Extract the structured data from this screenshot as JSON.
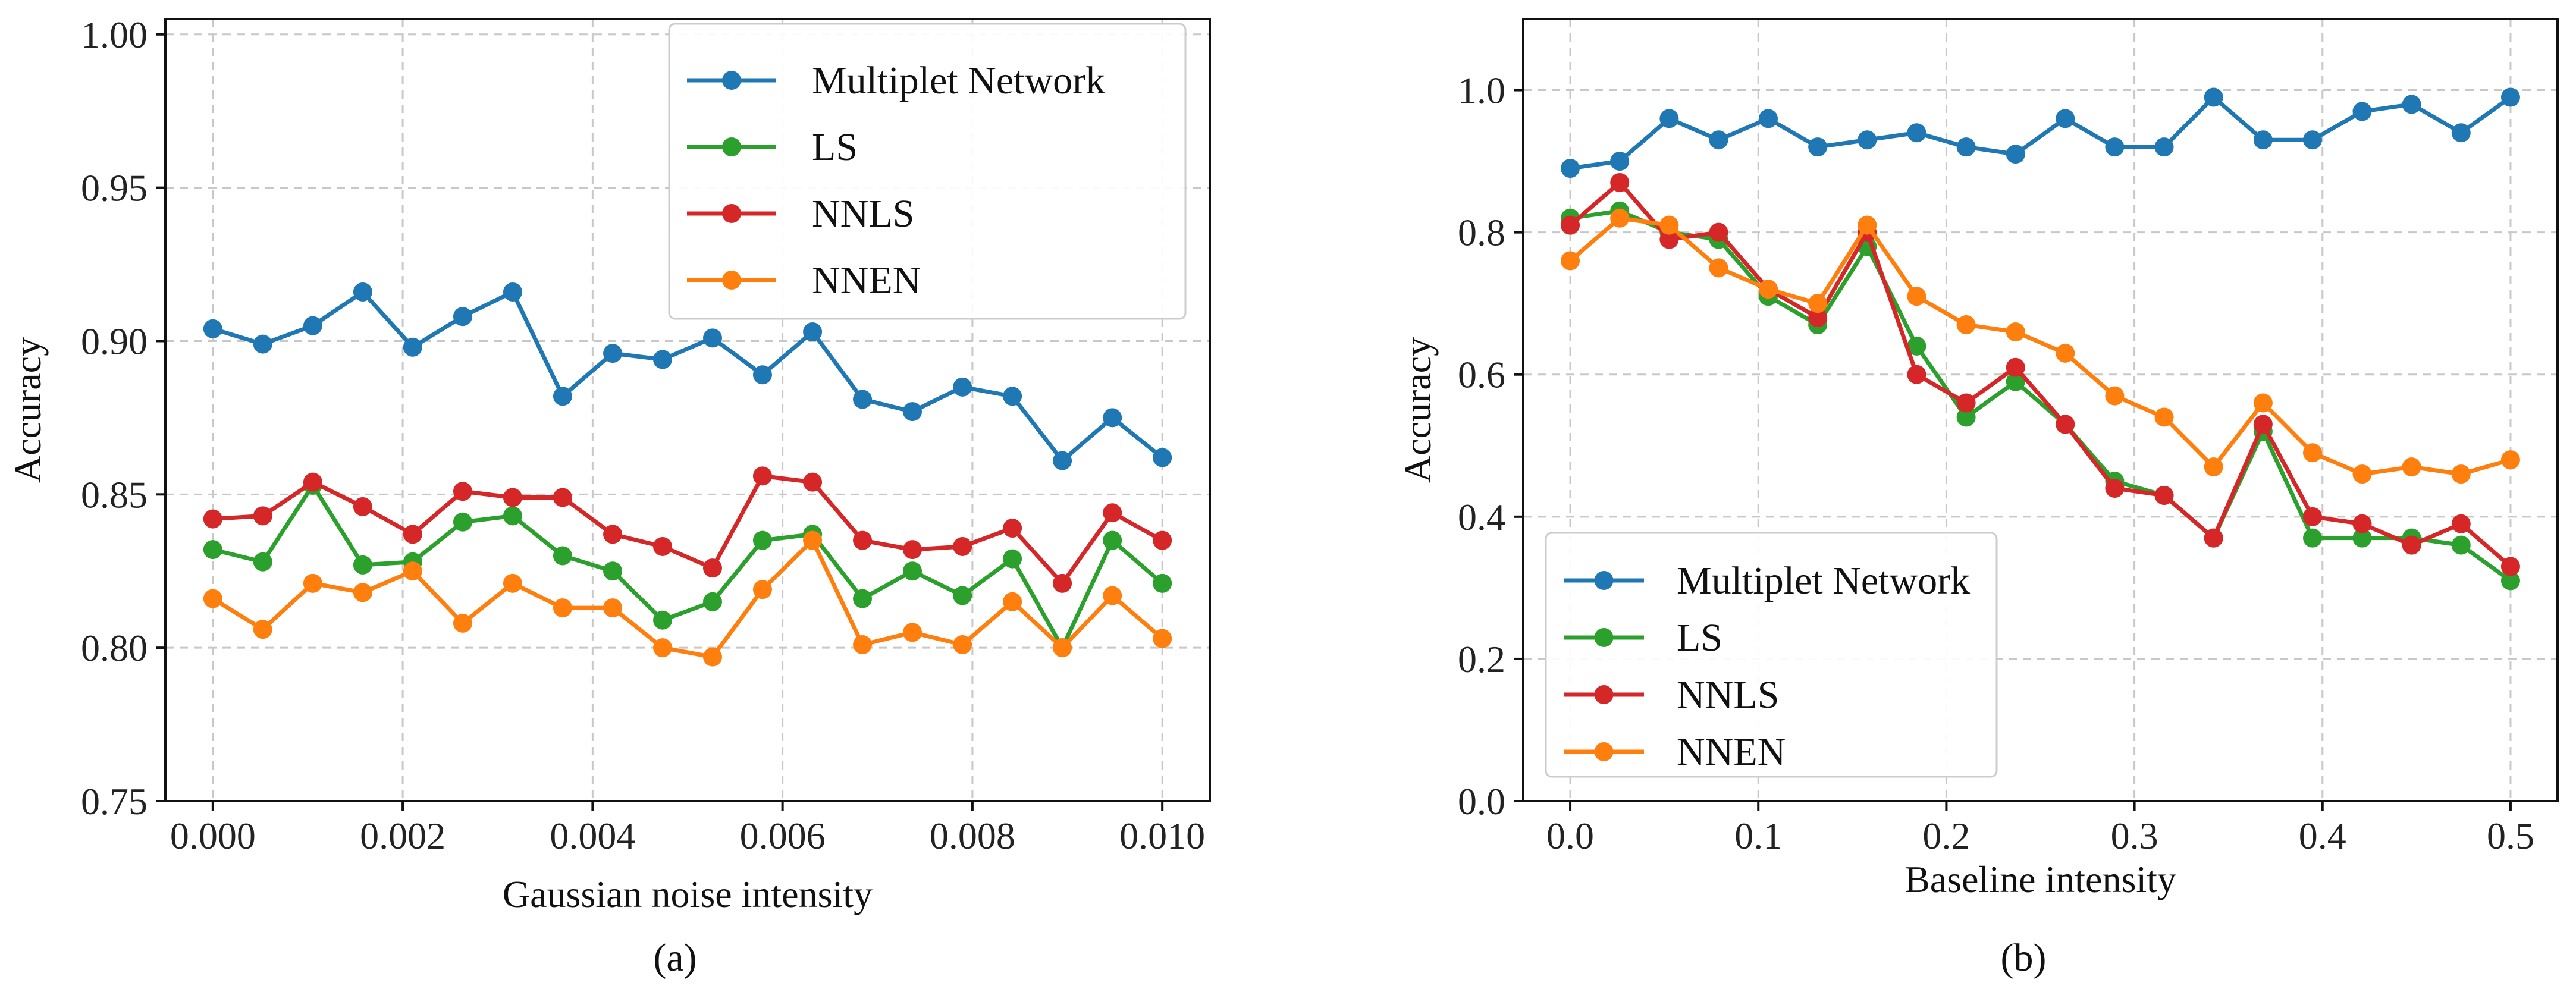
{
  "colors": {
    "multiplet": "#1f77b4",
    "ls": "#2ca02c",
    "nnls": "#d62728",
    "nnen": "#ff7f0e"
  },
  "chart_data": [
    {
      "id": "a",
      "type": "line",
      "caption": "(a)",
      "xlabel": "Gaussian noise intensity",
      "ylabel": "Accuracy",
      "xlim": [
        -0.0005,
        0.0105
      ],
      "ylim": [
        0.75,
        1.005
      ],
      "grid": true,
      "legend_position": "top-right",
      "xticks": [
        0.0,
        0.002,
        0.004,
        0.006,
        0.008,
        0.01
      ],
      "xtick_labels": [
        "0.000",
        "0.002",
        "0.004",
        "0.006",
        "0.008",
        "0.010"
      ],
      "yticks": [
        0.75,
        0.8,
        0.85,
        0.9,
        0.95,
        1.0
      ],
      "ytick_labels": [
        "0.75",
        "0.80",
        "0.85",
        "0.90",
        "0.95",
        "1.00"
      ],
      "x": [
        0.0,
        0.000526,
        0.001053,
        0.001579,
        0.002105,
        0.002632,
        0.003158,
        0.003684,
        0.004211,
        0.004737,
        0.005263,
        0.005789,
        0.006316,
        0.006842,
        0.007368,
        0.007895,
        0.008421,
        0.008947,
        0.009474,
        0.01
      ],
      "series": [
        {
          "name": "Multiplet Network",
          "color_key": "multiplet",
          "values": [
            0.904,
            0.899,
            0.905,
            0.916,
            0.898,
            0.908,
            0.916,
            0.882,
            0.896,
            0.894,
            0.901,
            0.889,
            0.903,
            0.881,
            0.877,
            0.885,
            0.882,
            0.861,
            0.875,
            0.862
          ]
        },
        {
          "name": "LS",
          "color_key": "ls",
          "values": [
            0.832,
            0.828,
            0.853,
            0.827,
            0.828,
            0.841,
            0.843,
            0.83,
            0.825,
            0.809,
            0.815,
            0.835,
            0.837,
            0.816,
            0.825,
            0.817,
            0.829,
            0.8,
            0.835,
            0.821
          ]
        },
        {
          "name": "NNLS",
          "color_key": "nnls",
          "values": [
            0.842,
            0.843,
            0.854,
            0.846,
            0.837,
            0.851,
            0.849,
            0.849,
            0.837,
            0.833,
            0.826,
            0.856,
            0.854,
            0.835,
            0.832,
            0.833,
            0.839,
            0.821,
            0.844,
            0.835
          ]
        },
        {
          "name": "NNEN",
          "color_key": "nnen",
          "values": [
            0.816,
            0.806,
            0.821,
            0.818,
            0.825,
            0.808,
            0.821,
            0.813,
            0.813,
            0.8,
            0.797,
            0.819,
            0.835,
            0.801,
            0.805,
            0.801,
            0.815,
            0.8,
            0.817,
            0.803
          ]
        }
      ]
    },
    {
      "id": "b",
      "type": "line",
      "caption": "(b)",
      "xlabel": "Baseline intensity",
      "ylabel": "Accuracy",
      "xlim": [
        -0.025,
        0.525
      ],
      "ylim": [
        0.0,
        1.1
      ],
      "grid": true,
      "legend_position": "lower-left",
      "xticks": [
        0.0,
        0.1,
        0.2,
        0.3,
        0.4,
        0.5
      ],
      "xtick_labels": [
        "0.0",
        "0.1",
        "0.2",
        "0.3",
        "0.4",
        "0.5"
      ],
      "yticks": [
        0.0,
        0.2,
        0.4,
        0.6,
        0.8,
        1.0
      ],
      "ytick_labels": [
        "0.0",
        "0.2",
        "0.4",
        "0.6",
        "0.8",
        "1.0"
      ],
      "x": [
        0.0,
        0.0263,
        0.0526,
        0.0789,
        0.1053,
        0.1316,
        0.1579,
        0.1842,
        0.2105,
        0.2368,
        0.2632,
        0.2895,
        0.3158,
        0.3421,
        0.3684,
        0.3947,
        0.4211,
        0.4474,
        0.4737,
        0.5
      ],
      "series": [
        {
          "name": "Multiplet Network",
          "color_key": "multiplet",
          "values": [
            0.89,
            0.9,
            0.96,
            0.93,
            0.96,
            0.92,
            0.93,
            0.94,
            0.92,
            0.91,
            0.96,
            0.92,
            0.92,
            0.99,
            0.93,
            0.93,
            0.97,
            0.98,
            0.94,
            0.99
          ]
        },
        {
          "name": "LS",
          "color_key": "ls",
          "values": [
            0.82,
            0.83,
            0.8,
            0.79,
            0.71,
            0.67,
            0.78,
            0.64,
            0.54,
            0.59,
            0.53,
            0.45,
            0.43,
            0.37,
            0.52,
            0.37,
            0.37,
            0.37,
            0.36,
            0.31
          ]
        },
        {
          "name": "NNLS",
          "color_key": "nnls",
          "values": [
            0.81,
            0.87,
            0.79,
            0.8,
            0.72,
            0.68,
            0.8,
            0.6,
            0.56,
            0.61,
            0.53,
            0.44,
            0.43,
            0.37,
            0.53,
            0.4,
            0.39,
            0.36,
            0.39,
            0.33
          ]
        },
        {
          "name": "NNEN",
          "color_key": "nnen",
          "values": [
            0.76,
            0.82,
            0.81,
            0.75,
            0.72,
            0.7,
            0.81,
            0.71,
            0.67,
            0.66,
            0.63,
            0.57,
            0.54,
            0.47,
            0.56,
            0.49,
            0.46,
            0.47,
            0.46,
            0.48
          ]
        }
      ]
    }
  ]
}
